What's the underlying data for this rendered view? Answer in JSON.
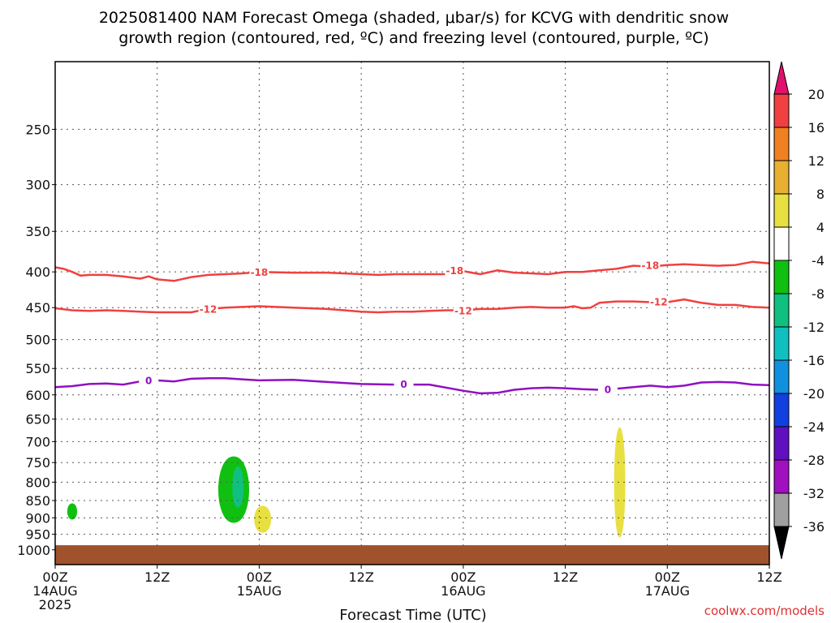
{
  "chart_data": {
    "type": "heatmap",
    "title_lines": [
      "2025081400 NAM Forecast Omega (shaded, μbar/s) for KCVG with dendritic snow",
      "growth region (contoured, red, ºC) and freezing level (contoured, purple, ºC)"
    ],
    "xlabel": "Forecast Time (UTC)",
    "x_range_hours": [
      0,
      84
    ],
    "y_range_hPa": [
      200,
      1050
    ],
    "y_scale": "log",
    "y_ticks": [
      250,
      300,
      350,
      400,
      450,
      500,
      550,
      600,
      650,
      700,
      750,
      800,
      850,
      900,
      950,
      1000
    ],
    "x_ticks": [
      {
        "h": 0,
        "lines": [
          "00Z",
          "14AUG",
          "2025"
        ]
      },
      {
        "h": 12,
        "lines": [
          "12Z"
        ]
      },
      {
        "h": 24,
        "lines": [
          "00Z",
          "15AUG"
        ]
      },
      {
        "h": 36,
        "lines": [
          "12Z"
        ]
      },
      {
        "h": 48,
        "lines": [
          "00Z",
          "16AUG"
        ]
      },
      {
        "h": 60,
        "lines": [
          "12Z"
        ]
      },
      {
        "h": 72,
        "lines": [
          "00Z",
          "17AUG"
        ]
      },
      {
        "h": 84,
        "lines": [
          "12Z"
        ]
      }
    ],
    "grid": true,
    "colorbar": {
      "placement": "right",
      "labels": [
        "20",
        "16",
        "12",
        "8",
        "4",
        "-4",
        "-8",
        "-12",
        "-16",
        "-20",
        "-24",
        "-28",
        "-32",
        "-36"
      ],
      "colors": [
        "#e0106e",
        "#f04040",
        "#f08020",
        "#e8b030",
        "#e8e040",
        "#ffffff",
        "#10c010",
        "#10c080",
        "#10c0c0",
        "#1090e0",
        "#1040e0",
        "#6010c0",
        "#a010c0",
        "#a0a0a0",
        "#000000"
      ]
    },
    "contours": [
      {
        "level": "-18",
        "color": "#f04040",
        "points": [
          [
            0,
            394
          ],
          [
            1,
            396
          ],
          [
            2,
            400
          ],
          [
            3,
            405
          ],
          [
            4,
            404
          ],
          [
            6,
            404
          ],
          [
            8,
            406
          ],
          [
            10,
            409
          ],
          [
            11,
            406
          ],
          [
            12,
            410
          ],
          [
            14,
            412
          ],
          [
            16,
            407
          ],
          [
            18,
            404
          ],
          [
            20,
            403
          ],
          [
            22,
            402
          ],
          [
            24,
            400
          ],
          [
            28,
            401
          ],
          [
            32,
            401
          ],
          [
            36,
            403
          ],
          [
            38,
            404
          ],
          [
            40,
            403
          ],
          [
            44,
            403
          ],
          [
            46,
            403
          ],
          [
            47,
            400
          ],
          [
            48,
            399
          ],
          [
            49,
            401
          ],
          [
            50,
            403
          ],
          [
            52,
            398
          ],
          [
            54,
            401
          ],
          [
            56,
            402
          ],
          [
            58,
            403
          ],
          [
            60,
            400
          ],
          [
            62,
            400
          ],
          [
            64,
            398
          ],
          [
            66,
            396
          ],
          [
            68,
            392
          ],
          [
            70,
            393
          ],
          [
            72,
            391
          ],
          [
            74,
            390
          ],
          [
            76,
            391
          ],
          [
            78,
            392
          ],
          [
            80,
            391
          ],
          [
            82,
            387
          ],
          [
            84,
            389
          ]
        ],
        "labels": [
          [
            24,
            401
          ],
          [
            47,
            399
          ],
          [
            70,
            392
          ]
        ]
      },
      {
        "level": "-12",
        "color": "#f04040",
        "points": [
          [
            0,
            451
          ],
          [
            2,
            454
          ],
          [
            4,
            455
          ],
          [
            6,
            454
          ],
          [
            8,
            455
          ],
          [
            10,
            456
          ],
          [
            12,
            457
          ],
          [
            16,
            457
          ],
          [
            18,
            452
          ],
          [
            20,
            450
          ],
          [
            22,
            449
          ],
          [
            24,
            448
          ],
          [
            28,
            450
          ],
          [
            32,
            452
          ],
          [
            34,
            454
          ],
          [
            36,
            456
          ],
          [
            38,
            457
          ],
          [
            40,
            456
          ],
          [
            42,
            456
          ],
          [
            44,
            455
          ],
          [
            46,
            454
          ],
          [
            48,
            454
          ],
          [
            50,
            452
          ],
          [
            52,
            452
          ],
          [
            54,
            450
          ],
          [
            56,
            449
          ],
          [
            58,
            450
          ],
          [
            60,
            450
          ],
          [
            61,
            448
          ],
          [
            62,
            451
          ],
          [
            63,
            450
          ],
          [
            64,
            443
          ],
          [
            66,
            441
          ],
          [
            68,
            441
          ],
          [
            70,
            442
          ],
          [
            72,
            442
          ],
          [
            74,
            438
          ],
          [
            76,
            443
          ],
          [
            78,
            446
          ],
          [
            80,
            446
          ],
          [
            82,
            449
          ],
          [
            84,
            450
          ]
        ],
        "labels": [
          [
            18,
            453
          ],
          [
            48,
            455
          ],
          [
            71,
            442
          ]
        ]
      },
      {
        "level": "0",
        "color": "#9010c0",
        "points": [
          [
            0,
            585
          ],
          [
            2,
            583
          ],
          [
            4,
            579
          ],
          [
            6,
            578
          ],
          [
            8,
            580
          ],
          [
            10,
            574
          ],
          [
            12,
            572
          ],
          [
            14,
            574
          ],
          [
            16,
            569
          ],
          [
            18,
            568
          ],
          [
            20,
            568
          ],
          [
            22,
            570
          ],
          [
            24,
            572
          ],
          [
            28,
            571
          ],
          [
            32,
            575
          ],
          [
            36,
            579
          ],
          [
            40,
            580
          ],
          [
            44,
            580
          ],
          [
            48,
            592
          ],
          [
            50,
            597
          ],
          [
            52,
            596
          ],
          [
            54,
            590
          ],
          [
            56,
            587
          ],
          [
            58,
            586
          ],
          [
            60,
            587
          ],
          [
            62,
            589
          ],
          [
            64,
            590
          ],
          [
            66,
            588
          ],
          [
            68,
            585
          ],
          [
            70,
            582
          ],
          [
            72,
            585
          ],
          [
            74,
            582
          ],
          [
            76,
            576
          ],
          [
            78,
            575
          ],
          [
            80,
            576
          ],
          [
            82,
            580
          ],
          [
            84,
            581
          ]
        ],
        "labels": [
          [
            11,
            573
          ],
          [
            41,
            580
          ],
          [
            65,
            590
          ]
        ]
      }
    ],
    "shaded_regions": [
      {
        "value_range": "-8 to -4",
        "color": "#10c010",
        "center_h": 2.0,
        "center_hPa": 878,
        "half_width_h": 0.7,
        "top_hPa": 858,
        "bottom_hPa": 905
      },
      {
        "value_range": "-8 to -4",
        "color": "#10c010",
        "center_h": 21.0,
        "center_hPa": 812,
        "half_width_h": 2.2,
        "top_hPa": 735,
        "bottom_hPa": 915
      },
      {
        "value_range": "-12 to -8",
        "color": "#10c080",
        "center_h": 21.5,
        "center_hPa": 805,
        "half_width_h": 0.8,
        "top_hPa": 760,
        "bottom_hPa": 870
      },
      {
        "value_range": "4 to 8",
        "color": "#e8e040",
        "center_h": 24.4,
        "center_hPa": 905,
        "half_width_h": 1.2,
        "top_hPa": 865,
        "bottom_hPa": 945
      },
      {
        "value_range": "4 to 8",
        "color": "#e8e040",
        "center_h": 66.4,
        "center_hPa": 810,
        "half_width_h": 0.8,
        "top_hPa": 668,
        "bottom_hPa": 960
      }
    ],
    "ground": {
      "color": "#a0522d",
      "top_hPa": 985
    }
  },
  "credit": "coolwx.com/models"
}
